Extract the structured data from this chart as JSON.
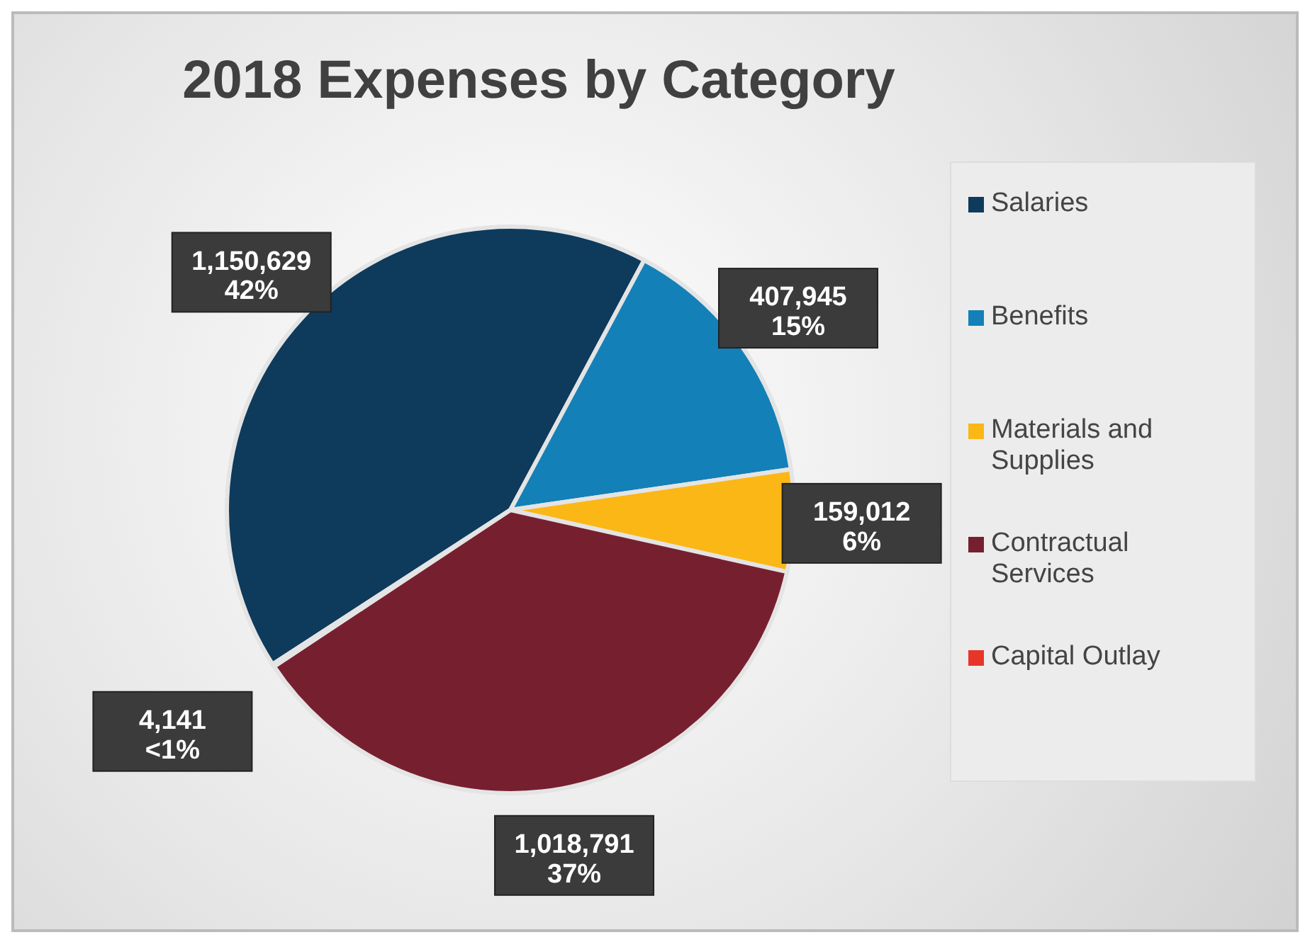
{
  "chart_data": {
    "type": "pie",
    "title": "2018 Expenses by Category",
    "categories": [
      "Salaries",
      "Benefits",
      "Materials and Supplies",
      "Contractual Services",
      "Capital Outlay"
    ],
    "values": [
      1150629,
      407945,
      159012,
      1018791,
      4141
    ],
    "colors": [
      "#0e3a5c",
      "#1380b8",
      "#fbb715",
      "#76202f",
      "#e8352a"
    ],
    "value_labels": [
      "1,150,629\n42%",
      "407,945\n15%",
      "159,012\n6%",
      "1,018,791\n37%",
      "4,141\n<1%"
    ],
    "legend": "right"
  }
}
